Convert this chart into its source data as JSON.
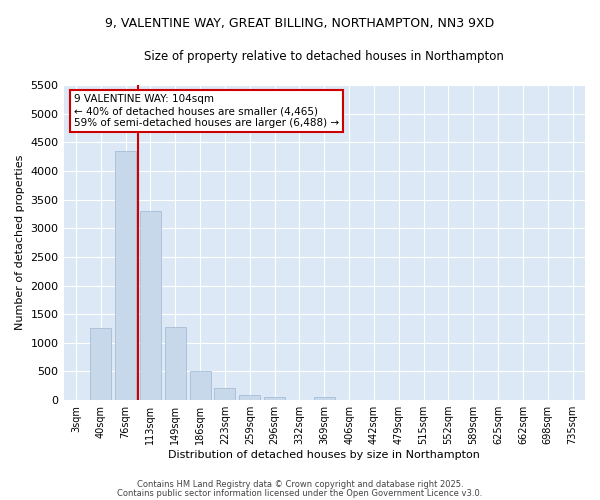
{
  "title_line1": "9, VALENTINE WAY, GREAT BILLING, NORTHAMPTON, NN3 9XD",
  "title_line2": "Size of property relative to detached houses in Northampton",
  "xlabel": "Distribution of detached houses by size in Northampton",
  "ylabel": "Number of detached properties",
  "categories": [
    "3sqm",
    "40sqm",
    "76sqm",
    "113sqm",
    "149sqm",
    "186sqm",
    "223sqm",
    "259sqm",
    "296sqm",
    "332sqm",
    "369sqm",
    "406sqm",
    "442sqm",
    "479sqm",
    "515sqm",
    "552sqm",
    "589sqm",
    "625sqm",
    "662sqm",
    "698sqm",
    "735sqm"
  ],
  "bar_values": [
    0,
    1250,
    4350,
    3300,
    1270,
    500,
    210,
    90,
    50,
    0,
    50,
    0,
    0,
    0,
    0,
    0,
    0,
    0,
    0,
    0,
    0
  ],
  "bar_color": "#c8d8eb",
  "bar_edgecolor": "#a0b8d0",
  "vline_color": "#cc0000",
  "vline_pos": 2.5,
  "annotation_text": "9 VALENTINE WAY: 104sqm\n← 40% of detached houses are smaller (4,465)\n59% of semi-detached houses are larger (6,488) →",
  "annotation_box_color": "#ffffff",
  "annotation_box_edgecolor": "#cc0000",
  "ylim": [
    0,
    5500
  ],
  "yticks": [
    0,
    500,
    1000,
    1500,
    2000,
    2500,
    3000,
    3500,
    4000,
    4500,
    5000,
    5500
  ],
  "figure_facecolor": "#ffffff",
  "axes_facecolor": "#dce8f5",
  "grid_color": "#ffffff",
  "footer_line1": "Contains HM Land Registry data © Crown copyright and database right 2025.",
  "footer_line2": "Contains public sector information licensed under the Open Government Licence v3.0."
}
